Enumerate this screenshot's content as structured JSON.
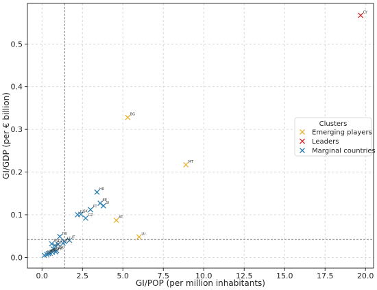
{
  "chart_data": {
    "type": "scatter",
    "xlabel": "GI/POP (per million inhabitants)",
    "ylabel": "GI/GDP (per € billion)",
    "xlim": [
      -0.9,
      20.5
    ],
    "ylim": [
      -0.025,
      0.595
    ],
    "xticks": [
      0.0,
      2.5,
      5.0,
      7.5,
      10.0,
      12.5,
      15.0,
      17.5,
      20.0
    ],
    "xtick_labels": [
      "0.0",
      "2.5",
      "5.0",
      "7.5",
      "10.0",
      "12.5",
      "15.0",
      "17.5",
      "20.0"
    ],
    "yticks": [
      0.0,
      0.1,
      0.2,
      0.3,
      0.4,
      0.5
    ],
    "ytick_labels": [
      "0.0",
      "0.1",
      "0.2",
      "0.3",
      "0.4",
      "0.5"
    ],
    "grid": true,
    "reference_lines": {
      "vertical_x": 1.4,
      "horizontal_y": 0.042
    },
    "legend": {
      "title": "Clusters",
      "placement": "center-right"
    },
    "series": [
      {
        "name": "Emerging players",
        "color": "#e8b22e",
        "marker": "x",
        "points": [
          {
            "label": "BG",
            "x": 5.3,
            "y": 0.328
          },
          {
            "label": "MT",
            "x": 8.9,
            "y": 0.217
          },
          {
            "label": "AT",
            "x": 4.6,
            "y": 0.087
          },
          {
            "label": "LU",
            "x": 6.0,
            "y": 0.048
          }
        ]
      },
      {
        "name": "Leaders",
        "color": "#d62728",
        "marker": "x",
        "points": [
          {
            "label": "CY",
            "x": 19.7,
            "y": 0.567
          }
        ]
      },
      {
        "name": "Marginal countries",
        "color": "#2f7fb0",
        "marker": "x",
        "points": [
          {
            "label": "HR",
            "x": 3.4,
            "y": 0.153
          },
          {
            "label": "EE",
            "x": 3.6,
            "y": 0.127
          },
          {
            "label": "SI",
            "x": 3.8,
            "y": 0.121
          },
          {
            "label": "PT",
            "x": 3.0,
            "y": 0.112
          },
          {
            "label": "SK",
            "x": 2.4,
            "y": 0.101
          },
          {
            "label": "LV",
            "x": 2.2,
            "y": 0.1
          },
          {
            "label": "CZ",
            "x": 2.7,
            "y": 0.092
          },
          {
            "label": "HU",
            "x": 1.1,
            "y": 0.049
          },
          {
            "label": "IT",
            "x": 1.7,
            "y": 0.04
          },
          {
            "label": "LT",
            "x": 1.4,
            "y": 0.037
          },
          {
            "label": "ES",
            "x": 1.3,
            "y": 0.033
          },
          {
            "label": "PL",
            "x": 1.0,
            "y": 0.031
          },
          {
            "label": "EL",
            "x": 0.8,
            "y": 0.028
          },
          {
            "label": "RO",
            "x": 0.6,
            "y": 0.032
          },
          {
            "label": "FI",
            "x": 0.7,
            "y": 0.02
          },
          {
            "label": "DK",
            "x": 0.9,
            "y": 0.016
          },
          {
            "label": "FR",
            "x": 0.85,
            "y": 0.013
          },
          {
            "label": "BE",
            "x": 0.65,
            "y": 0.012
          },
          {
            "label": "NL",
            "x": 0.5,
            "y": 0.01
          },
          {
            "label": "SE",
            "x": 0.4,
            "y": 0.009
          },
          {
            "label": "IE",
            "x": 0.3,
            "y": 0.007
          },
          {
            "label": "DE",
            "x": 0.15,
            "y": 0.005
          }
        ]
      }
    ]
  }
}
